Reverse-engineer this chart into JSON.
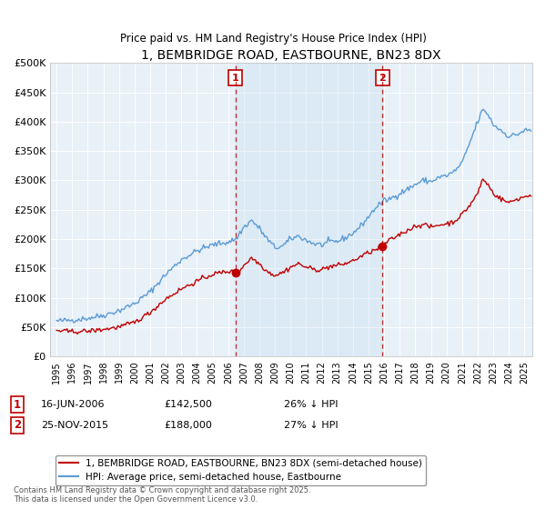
{
  "title": "1, BEMBRIDGE ROAD, EASTBOURNE, BN23 8DX",
  "subtitle": "Price paid vs. HM Land Registry's House Price Index (HPI)",
  "hpi_label": "HPI: Average price, semi-detached house, Eastbourne",
  "property_label": "1, BEMBRIDGE ROAD, EASTBOURNE, BN23 8DX (semi-detached house)",
  "hpi_color": "#5b9bd5",
  "property_color": "#c00000",
  "vline_color": "#c00000",
  "shade_color": "#d6e8f7",
  "annotation1": {
    "number": 1,
    "x_year": 2006.46,
    "date": "16-JUN-2006",
    "price": 142500,
    "hpi_pct": "26% ↓ HPI"
  },
  "annotation2": {
    "number": 2,
    "x_year": 2015.9,
    "date": "25-NOV-2015",
    "price": 188000,
    "hpi_pct": "27% ↓ HPI"
  },
  "ylim": [
    0,
    500000
  ],
  "yticks": [
    0,
    50000,
    100000,
    150000,
    200000,
    250000,
    300000,
    350000,
    400000,
    450000,
    500000
  ],
  "xlim_start": 1994.6,
  "xlim_end": 2025.5,
  "copyright": "Contains HM Land Registry data © Crown copyright and database right 2025.\nThis data is licensed under the Open Government Licence v3.0.",
  "plot_bg_color": "#e8f0f8"
}
